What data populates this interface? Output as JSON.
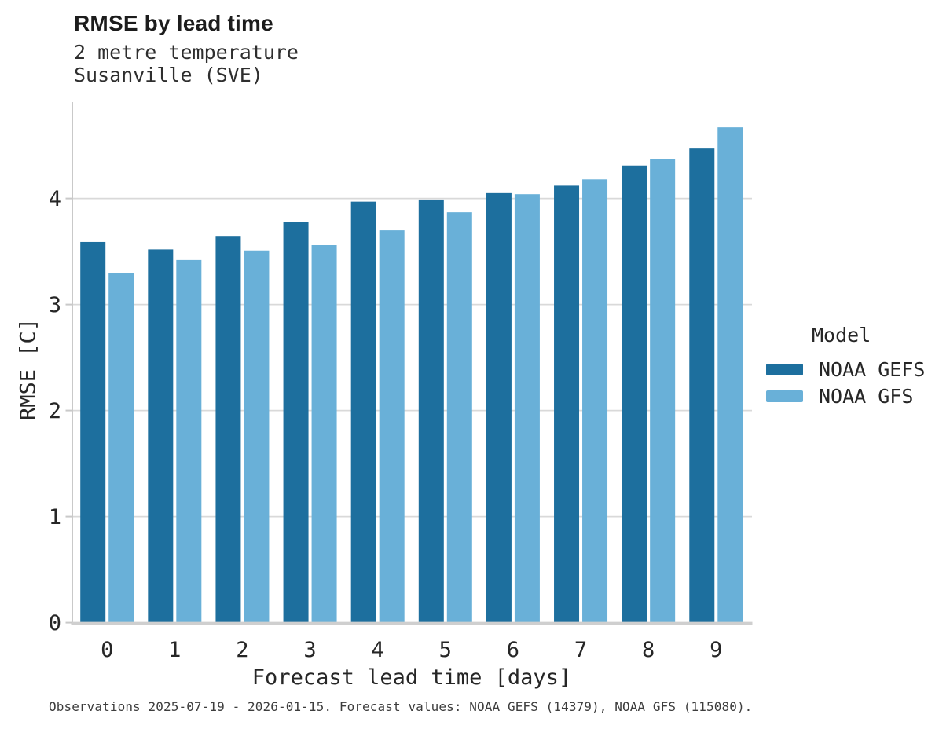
{
  "chart_data": {
    "type": "bar",
    "title": "RMSE by lead time",
    "subtitle": [
      "2 metre temperature",
      "Susanville (SVE)"
    ],
    "categories": [
      0,
      1,
      2,
      3,
      4,
      5,
      6,
      7,
      8,
      9
    ],
    "series": [
      {
        "name": "NOAA GEFS",
        "color": "#1d6f9e",
        "values": [
          3.59,
          3.52,
          3.64,
          3.78,
          3.97,
          3.99,
          4.05,
          4.12,
          4.31,
          4.47
        ]
      },
      {
        "name": "NOAA GFS",
        "color": "#69b0d8",
        "values": [
          3.3,
          3.42,
          3.51,
          3.56,
          3.7,
          3.87,
          4.04,
          4.18,
          4.37,
          4.67
        ]
      }
    ],
    "xlabel": "Forecast lead time [days]",
    "ylabel": "RMSE [C]",
    "yticks": [
      0,
      1,
      2,
      3,
      4
    ],
    "ylim": [
      0,
      4.91
    ],
    "grid": "horizontal",
    "grid_color": "#d9d9d9",
    "spine_color": "#c9c9c9",
    "text_color": "#262626",
    "legend_title": "Model",
    "legend_position": "right",
    "caption": "Observations 2025-07-19 - 2026-01-15. Forecast values: NOAA GEFS (14379), NOAA GFS (115080)."
  }
}
